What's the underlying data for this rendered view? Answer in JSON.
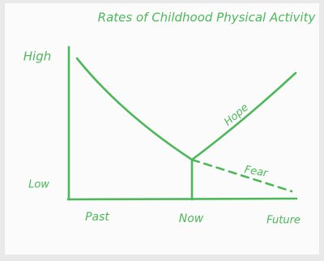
{
  "title": "Rates of Childhood Physical Activity",
  "y_axis": {
    "high": "High",
    "low": "Low"
  },
  "x_axis": [
    "Past",
    "Now",
    "Future"
  ],
  "curves": {
    "upper": "Hope",
    "lower": "Fear"
  }
}
